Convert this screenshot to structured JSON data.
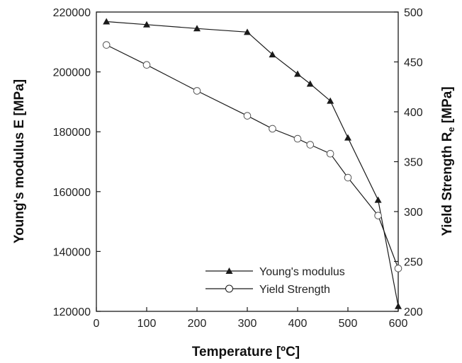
{
  "chart_data": {
    "type": "line",
    "title": "",
    "xlabel": "Temperature [ºC]",
    "ylabel": "Young's modulus E [MPa]",
    "y2label_main": "Yield Strength R",
    "y2label_sub": "e",
    "y2label_tail": " [MPa]",
    "xlim": [
      0,
      600
    ],
    "ylim": [
      120000,
      220000
    ],
    "y2lim": [
      200,
      500
    ],
    "x_ticks": [
      "0",
      "100",
      "200",
      "300",
      "400",
      "500",
      "600"
    ],
    "y_ticks": [
      "120000",
      "140000",
      "160000",
      "180000",
      "200000",
      "220000"
    ],
    "y2_ticks": [
      "200",
      "250",
      "300",
      "350",
      "400",
      "450",
      "500"
    ],
    "grid": false,
    "legend_position": "bottom-center",
    "series": [
      {
        "name": "Young's modulus",
        "axis": "left",
        "marker": "filled-triangle",
        "color": "#1a1a1a",
        "x": [
          20,
          100,
          200,
          300,
          350,
          400,
          425,
          465,
          500,
          560,
          600
        ],
        "y": [
          216800,
          215800,
          214500,
          213300,
          205800,
          199300,
          196000,
          190300,
          178000,
          157200,
          121700
        ]
      },
      {
        "name": "Yield Strength",
        "axis": "right",
        "marker": "open-circle",
        "color": "#1a1a1a",
        "x": [
          20,
          100,
          200,
          300,
          350,
          400,
          425,
          465,
          500,
          560,
          600
        ],
        "y": [
          467,
          447,
          421,
          396,
          383,
          373,
          367,
          358,
          334,
          296,
          243
        ]
      }
    ]
  }
}
